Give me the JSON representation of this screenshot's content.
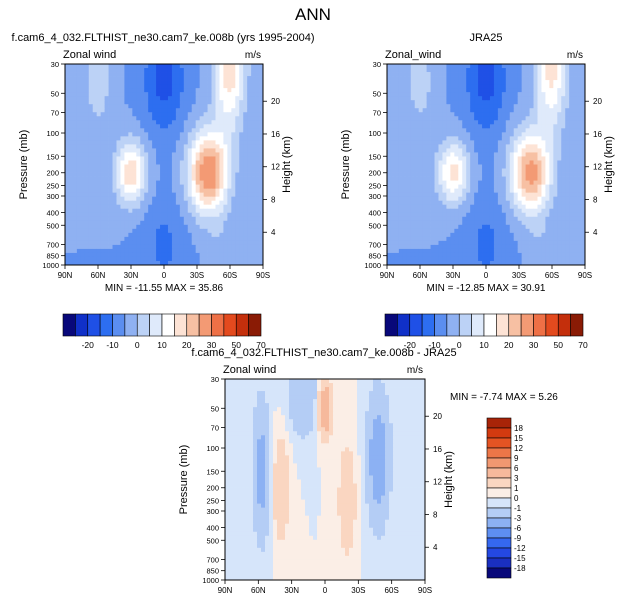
{
  "page_title": "ANN",
  "colorbar_top": {
    "colors": [
      "#08087a",
      "#1030c8",
      "#1f50e6",
      "#2d6ef0",
      "#5b8ef0",
      "#8fb1f2",
      "#bcd2f6",
      "#dfeafb",
      "#ffffff",
      "#fde3d5",
      "#f7c0a3",
      "#f39a74",
      "#ee7046",
      "#e34a1e",
      "#c42f0c",
      "#8a1b05"
    ],
    "labels": [
      "-20",
      "-10",
      "0",
      "10",
      "20",
      "30",
      "50",
      "70"
    ]
  },
  "colorbar_diff": {
    "colors": [
      "#08087a",
      "#1a2fc0",
      "#2448e2",
      "#3568f0",
      "#5e8ff2",
      "#8cb1f3",
      "#b4cdf5",
      "#d6e5fa",
      "#fbeee6",
      "#fad6c1",
      "#f6b99c",
      "#f19871",
      "#ec7648",
      "#e45423",
      "#d23a10",
      "#a82408"
    ],
    "labels": [
      "18",
      "15",
      "12",
      "9",
      "6",
      "3",
      "1",
      "0",
      "-1",
      "-3",
      "-6",
      "-9",
      "-12",
      "-15",
      "-18"
    ]
  },
  "chart_data": [
    {
      "type": "heatmap",
      "title": "f.cam6_4_032.FLTHIST_ne30.cam7_ke.008b (yrs 1995-2004)",
      "left_label": "Zonal wind",
      "right_label": "m/s",
      "ylabel": "Pressure (mb)",
      "y2label": "Height (km)",
      "x_ticks": [
        "90N",
        "60N",
        "30N",
        "0",
        "30S",
        "60S",
        "90S"
      ],
      "y_ticks": [
        "30",
        "50",
        "70",
        "100",
        "150",
        "200",
        "250",
        "300",
        "400",
        "500",
        "700",
        "850",
        "1000"
      ],
      "y2_ticks": [
        "20",
        "16",
        "12",
        "8",
        "4"
      ],
      "min_max_text": "MIN = -11.55   MAX = 35.86",
      "lat_range": [
        90,
        -90
      ],
      "pressure_range": [
        30,
        1000
      ]
    },
    {
      "type": "heatmap",
      "title": "JRA25",
      "left_label": "Zonal_wind",
      "right_label": "m/s",
      "ylabel": "Pressure (mb)",
      "y2label": "Height (km)",
      "x_ticks": [
        "90N",
        "60N",
        "30N",
        "0",
        "30S",
        "60S",
        "90S"
      ],
      "y_ticks": [
        "30",
        "50",
        "70",
        "100",
        "150",
        "200",
        "250",
        "300",
        "400",
        "500",
        "700",
        "850",
        "1000"
      ],
      "y2_ticks": [
        "20",
        "16",
        "12",
        "8",
        "4"
      ],
      "min_max_text": "MIN = -12.85   MAX = 30.91",
      "lat_range": [
        90,
        -90
      ],
      "pressure_range": [
        30,
        1000
      ]
    },
    {
      "type": "heatmap",
      "title": "f.cam6_4_032.FLTHIST_ne30.cam7_ke.008b - JRA25",
      "left_label": "Zonal wind",
      "right_label": "m/s",
      "ylabel": "Pressure (mb)",
      "y2label": "Height (km)",
      "x_ticks": [
        "90N",
        "60N",
        "30N",
        "0",
        "30S",
        "60S",
        "90S"
      ],
      "y_ticks": [
        "30",
        "50",
        "70",
        "100",
        "150",
        "200",
        "250",
        "300",
        "400",
        "500",
        "700",
        "850",
        "1000"
      ],
      "y2_ticks": [
        "20",
        "16",
        "12",
        "8",
        "4"
      ],
      "min_max_text": "MIN = -7.74   MAX =  5.26",
      "lat_range": [
        90,
        -90
      ],
      "pressure_range": [
        30,
        1000
      ]
    }
  ]
}
